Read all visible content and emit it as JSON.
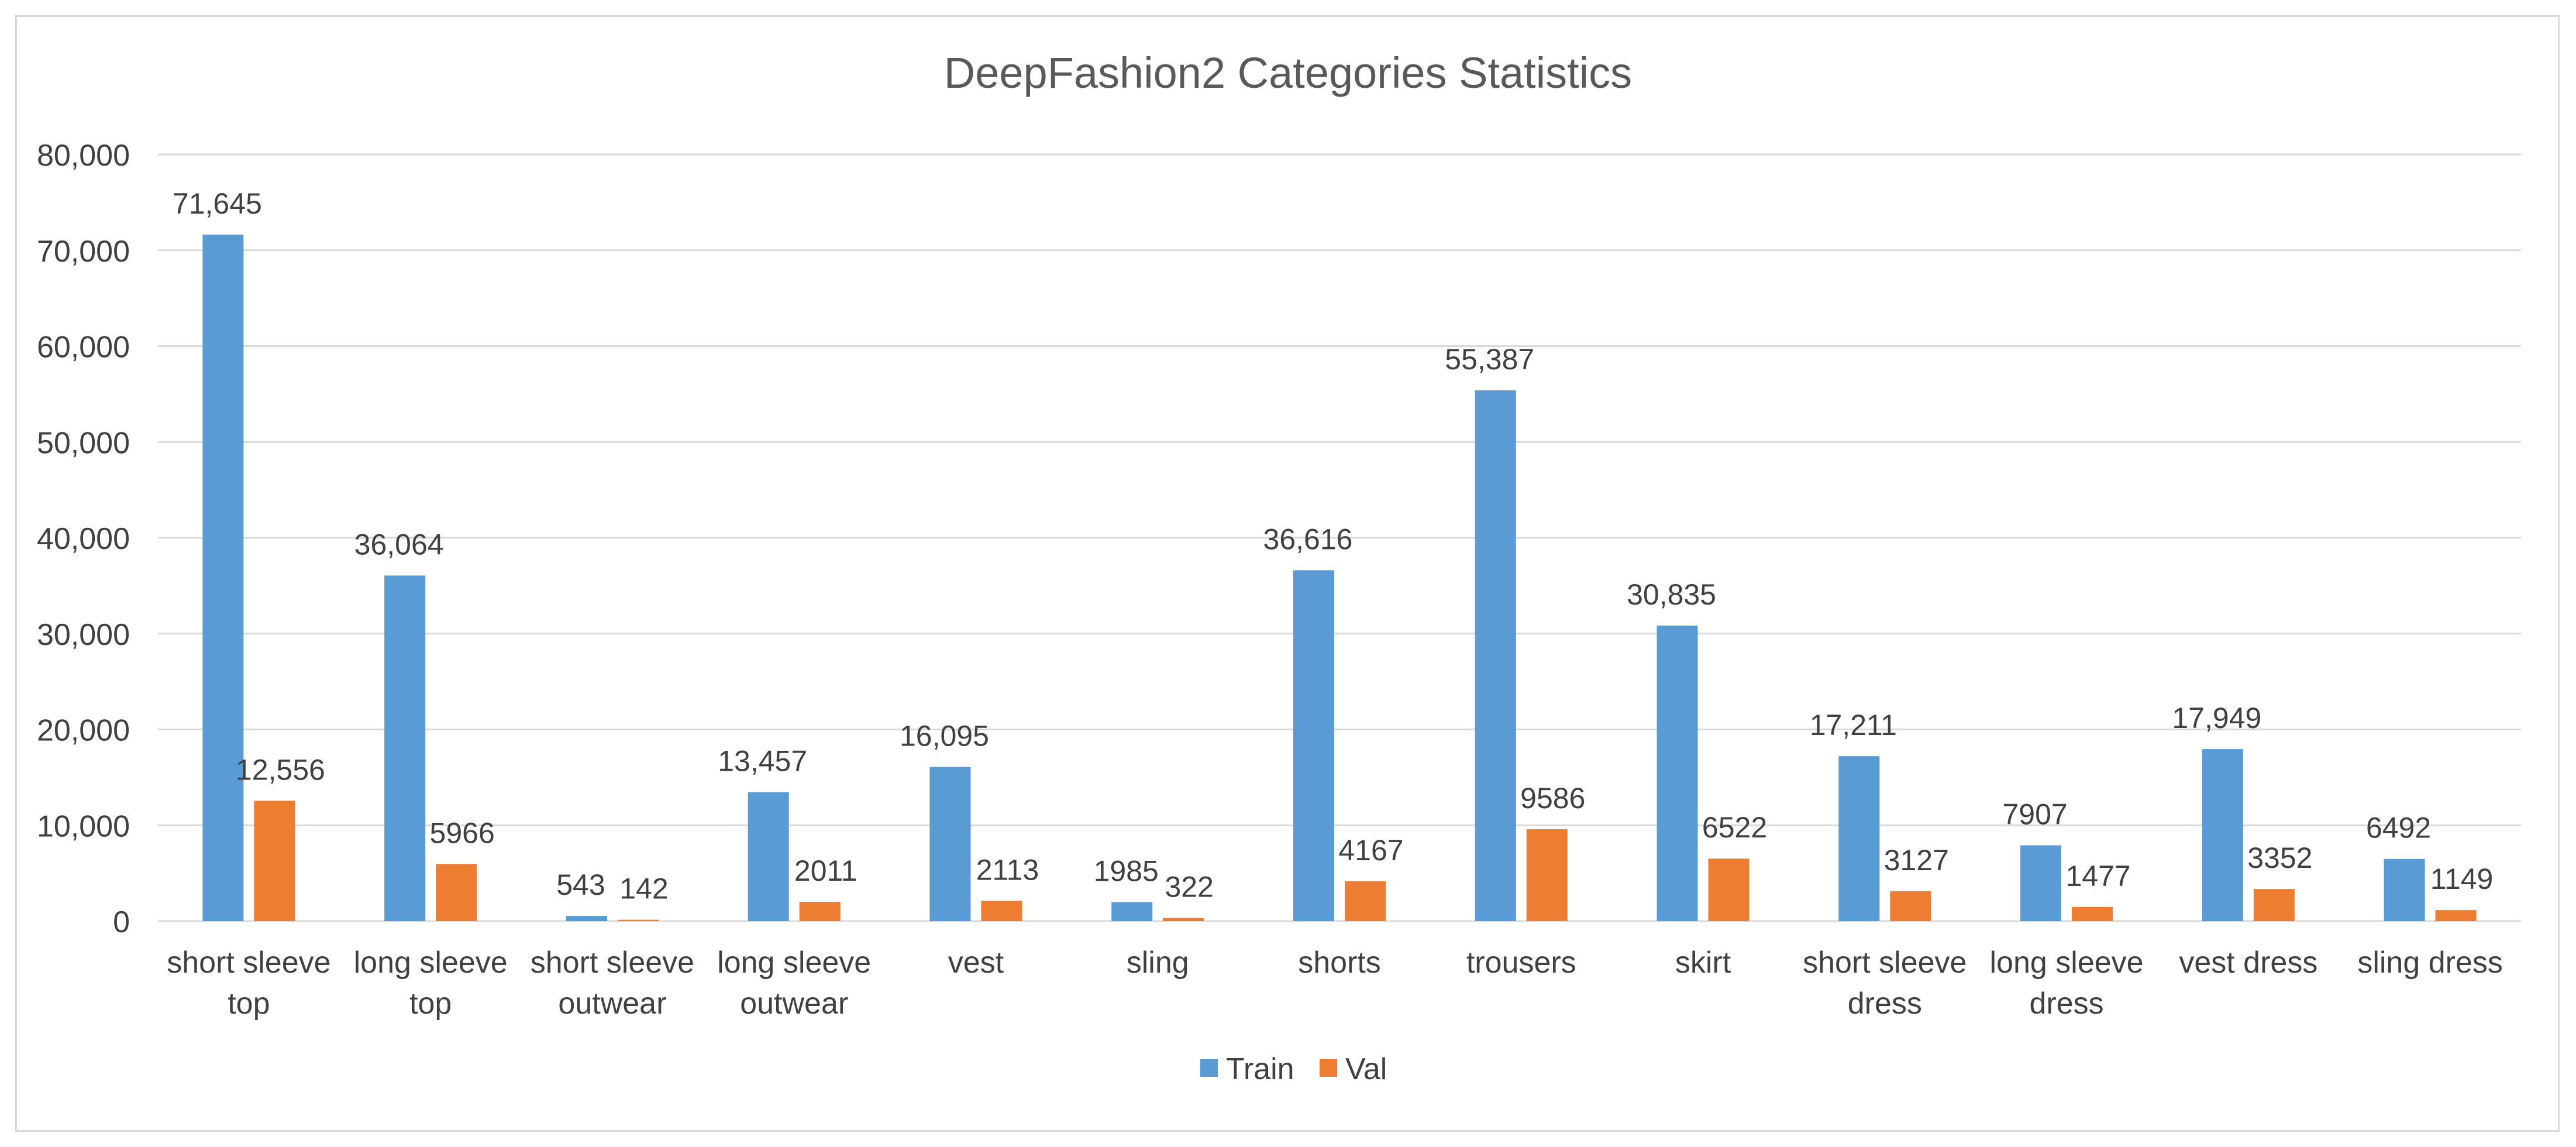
{
  "chart_data": {
    "type": "bar",
    "title": "DeepFashion2 Categories Statistics",
    "xlabel": "",
    "ylabel": "",
    "ylim": [
      0,
      80000
    ],
    "yticks": [
      0,
      10000,
      20000,
      30000,
      40000,
      50000,
      60000,
      70000,
      80000
    ],
    "ytick_labels": [
      "0",
      "10,000",
      "20,000",
      "30,000",
      "40,000",
      "50,000",
      "60,000",
      "70,000",
      "80,000"
    ],
    "grid": true,
    "legend_position": "bottom",
    "categories": [
      [
        "short sleeve",
        "top"
      ],
      [
        "long sleeve",
        "top"
      ],
      [
        "short sleeve",
        "outwear"
      ],
      [
        "long sleeve",
        "outwear"
      ],
      [
        "vest"
      ],
      [
        "sling"
      ],
      [
        "shorts"
      ],
      [
        "trousers"
      ],
      [
        "skirt"
      ],
      [
        "short sleeve",
        "dress"
      ],
      [
        "long sleeve",
        "dress"
      ],
      [
        "vest dress"
      ],
      [
        "sling dress"
      ]
    ],
    "series": [
      {
        "name": "Train",
        "color": "#5b9bd5",
        "values": [
          71645,
          36064,
          543,
          13457,
          16095,
          1985,
          36616,
          55387,
          30835,
          17211,
          7907,
          17949,
          6492
        ],
        "labels": [
          "71,645",
          "36,064",
          "543",
          "13,457",
          "16,095",
          "1985",
          "36,616",
          "55,387",
          "30,835",
          "17,211",
          "7907",
          "17,949",
          "6492"
        ]
      },
      {
        "name": "Val",
        "color": "#ed7d31",
        "values": [
          12556,
          5966,
          142,
          2011,
          2113,
          322,
          4167,
          9586,
          6522,
          3127,
          1477,
          3352,
          1149
        ],
        "labels": [
          "12,556",
          "5966",
          "142",
          "2011",
          "2113",
          "322",
          "4167",
          "9586",
          "6522",
          "3127",
          "1477",
          "3352",
          "1149"
        ]
      }
    ]
  }
}
